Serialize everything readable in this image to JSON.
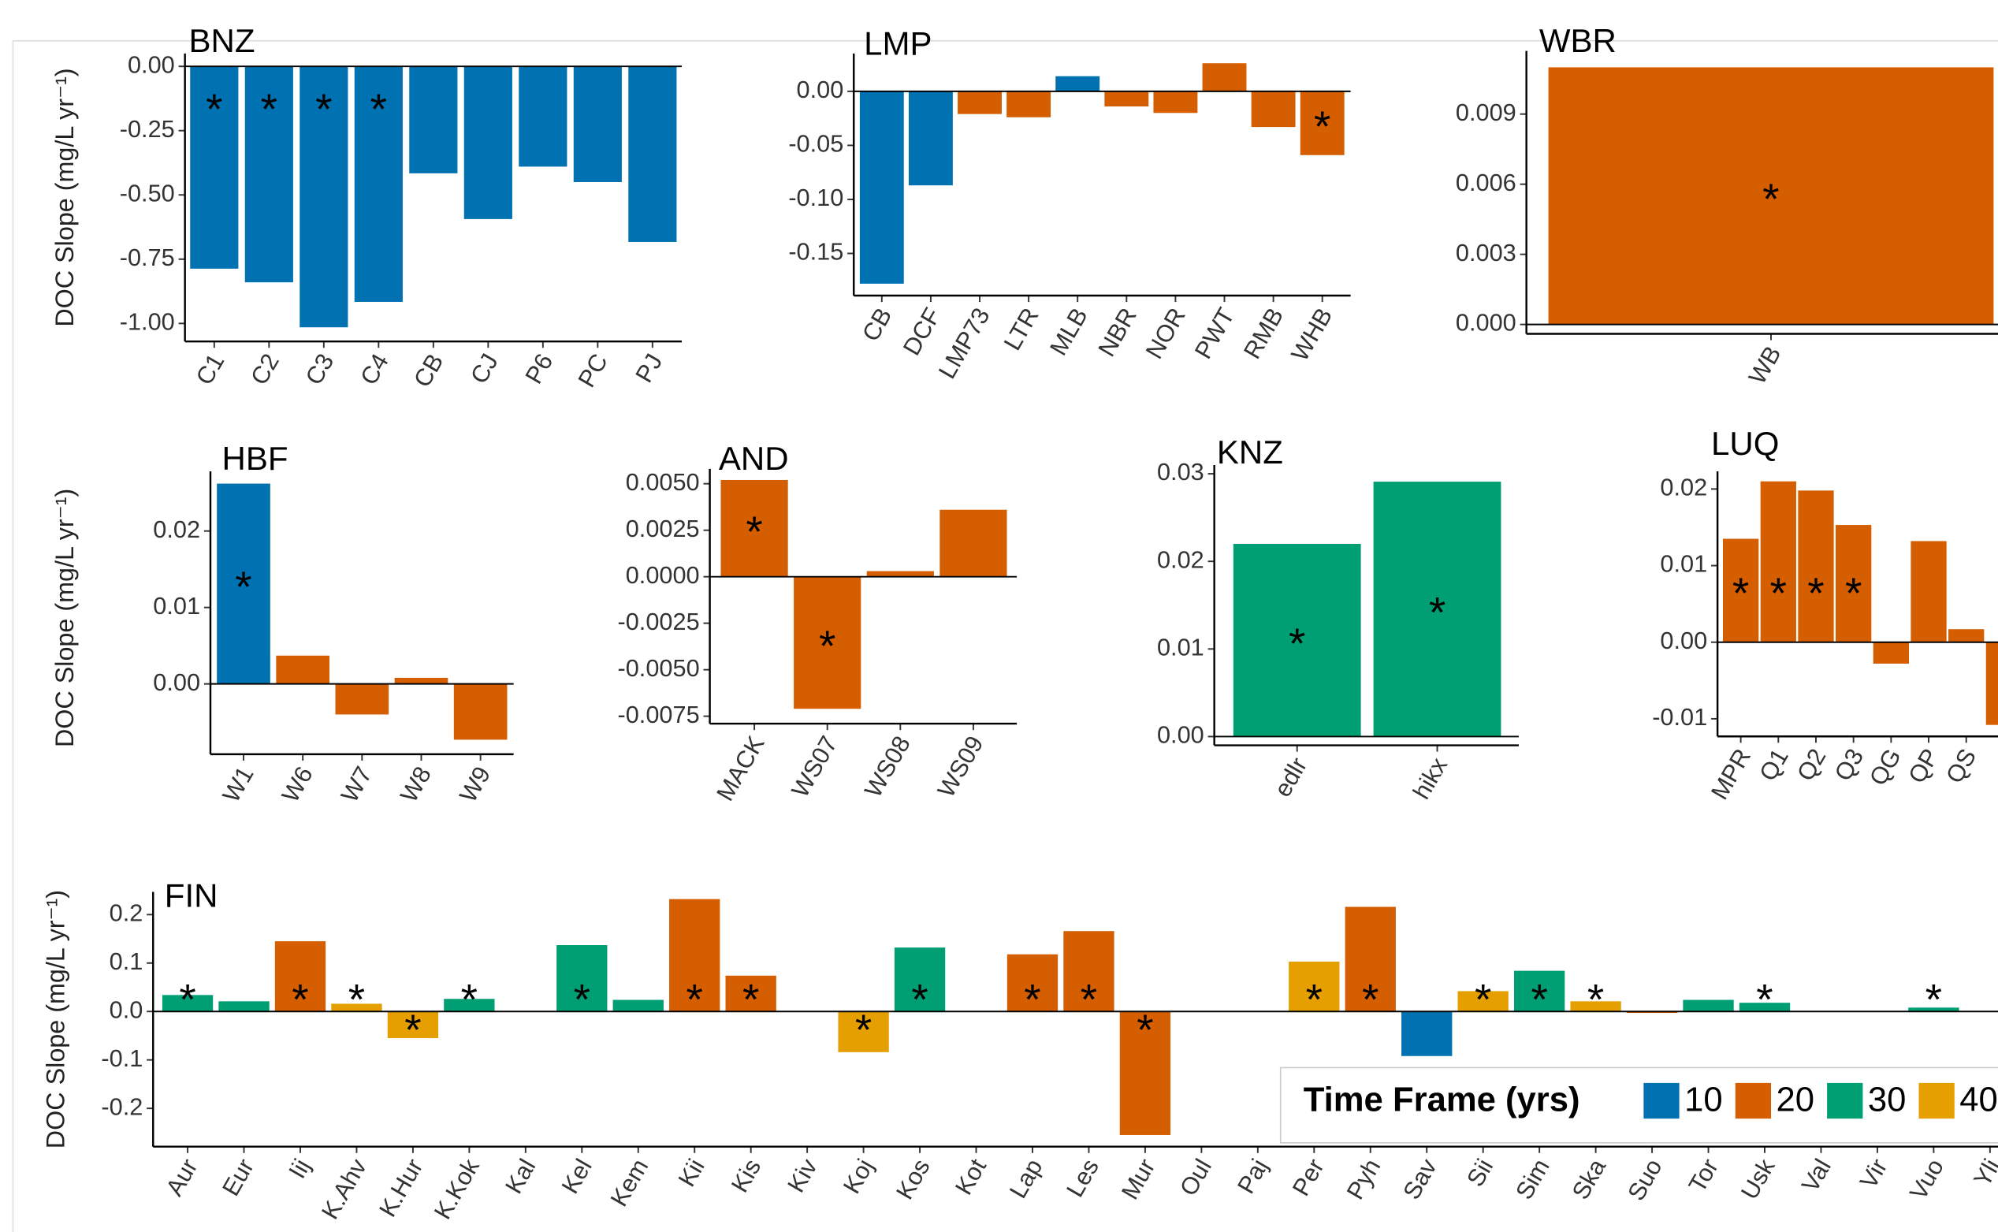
{
  "chart_data": [
    {
      "type": "bar",
      "title": "BNZ",
      "ylabel": "DOC Slope (mg/L yr⁻¹)",
      "marker": "*",
      "categories": [
        "C1",
        "C2",
        "C3",
        "C4",
        "CB",
        "CJ",
        "P6",
        "PC",
        "PJ"
      ],
      "values": [
        -0.787,
        -0.84,
        -1.015,
        -0.916,
        -0.416,
        -0.594,
        -0.39,
        -0.45,
        -0.683
      ],
      "colors": [
        "#0072b2",
        "#0072b2",
        "#0072b2",
        "#0072b2",
        "#0072b2",
        "#0072b2",
        "#0072b2",
        "#0072b2",
        "#0072b2"
      ],
      "significant": [
        true,
        true,
        true,
        true,
        false,
        false,
        false,
        false,
        false
      ],
      "ylim": [
        -1.07,
        0.05
      ],
      "yticks": [
        {
          "value": 0,
          "label": "0.00"
        },
        -0.25,
        {
          "value": -0.5,
          "label": "-0.50"
        },
        -0.75,
        {
          "value": -1,
          "label": "-1.00"
        }
      ]
    },
    {
      "type": "bar",
      "title": "LMP",
      "marker": "*",
      "categories": [
        "CB",
        "DCF",
        "LMP73",
        "LTR",
        "MLB",
        "NBR",
        "NOR",
        "PWT",
        "RMB",
        "WHB"
      ],
      "values": [
        -0.178,
        -0.087,
        -0.021,
        -0.024,
        0.014,
        -0.014,
        -0.02,
        0.026,
        -0.033,
        -0.059
      ],
      "colors": [
        "#0072b2",
        "#0072b2",
        "#d55e00",
        "#d55e00",
        "#0072b2",
        "#d55e00",
        "#d55e00",
        "#d55e00",
        "#d55e00",
        "#d55e00"
      ],
      "significant": [
        false,
        false,
        false,
        false,
        false,
        false,
        false,
        false,
        false,
        true
      ],
      "ylim": [
        -0.189,
        0.035
      ],
      "yticks": [
        {
          "value": 0,
          "label": "0.00"
        },
        -0.05,
        {
          "value": -0.1,
          "label": "-0.10"
        },
        -0.15
      ]
    },
    {
      "type": "bar",
      "title": "WBR",
      "marker": "*",
      "categories": [
        "WB"
      ],
      "values": [
        0.011
      ],
      "colors": [
        "#d55e00"
      ],
      "significant": [
        true
      ],
      "ylim": [
        -0.0004,
        0.0117
      ],
      "yticks": [
        {
          "value": 0,
          "label": "0.000"
        },
        0.003,
        0.006,
        0.009
      ]
    },
    {
      "type": "bar",
      "title": "HBF",
      "ylabel": "DOC Slope (mg/L yr⁻¹)",
      "marker": "*",
      "categories": [
        "W1",
        "W6",
        "W7",
        "W8",
        "W9"
      ],
      "values": [
        0.0262,
        0.0037,
        -0.004,
        0.0008,
        -0.0073
      ],
      "colors": [
        "#0072b2",
        "#d55e00",
        "#d55e00",
        "#d55e00",
        "#d55e00"
      ],
      "significant": [
        true,
        false,
        false,
        false,
        false
      ],
      "ylim": [
        -0.0092,
        0.0278
      ],
      "yticks": [
        {
          "value": 0,
          "label": "0.00"
        },
        0.01,
        0.02
      ]
    },
    {
      "type": "bar",
      "title": "AND",
      "marker": "*",
      "categories": [
        "MACK",
        "WS07",
        "WS08",
        "WS09"
      ],
      "values": [
        0.0052,
        -0.0071,
        0.0003,
        0.0036
      ],
      "colors": [
        "#d55e00",
        "#d55e00",
        "#d55e00",
        "#d55e00"
      ],
      "significant": [
        true,
        true,
        false,
        false
      ],
      "ylim": [
        -0.0079,
        0.0058
      ],
      "yticks": [
        {
          "value": 0.005,
          "label": "0.0050"
        },
        0.0025,
        {
          "value": 0,
          "label": "0.0000"
        },
        -0.0025,
        {
          "value": -0.005,
          "label": "-0.0050"
        },
        -0.0075
      ]
    },
    {
      "type": "bar",
      "title": "KNZ",
      "marker": "*",
      "categories": [
        "edlr",
        "hikx"
      ],
      "values": [
        0.022,
        0.0291
      ],
      "colors": [
        "#009e73",
        "#009e73"
      ],
      "significant": [
        true,
        true
      ],
      "ylim": [
        -0.001,
        0.031
      ],
      "yticks": [
        {
          "value": 0,
          "label": "0.00"
        },
        0.01,
        0.02,
        0.03
      ]
    },
    {
      "type": "bar",
      "title": "LUQ",
      "marker": "*",
      "categories": [
        "MPR",
        "Q1",
        "Q2",
        "Q3",
        "QG",
        "QP",
        "QS",
        null
      ],
      "values": [
        0.0135,
        0.021,
        0.0198,
        0.0153,
        -0.0028,
        0.0132,
        0.0017,
        -0.0108
      ],
      "colors": [
        "#d55e00",
        "#d55e00",
        "#d55e00",
        "#d55e00",
        "#d55e00",
        "#d55e00",
        "#d55e00",
        "#d55e00"
      ],
      "significant": [
        true,
        true,
        true,
        true,
        false,
        false,
        false,
        false
      ],
      "ylim": [
        -0.0123,
        0.0223
      ],
      "yticks": [
        0.02,
        0.01,
        {
          "value": 0,
          "label": "0.00"
        },
        -0.01
      ]
    },
    {
      "type": "bar",
      "title": "FIN",
      "ylabel": "DOC Slope (mg/L yr⁻¹)",
      "marker": "*",
      "categories": [
        "Aur",
        "Eur",
        "Iij",
        "K.Ahv",
        "K.Hur",
        "K.Kok",
        "Kal",
        "Kel",
        "Kem",
        "Kii",
        "Kis",
        "Kiv",
        "Koj",
        "Kos",
        "Kot",
        "Lap",
        "Les",
        "Mur",
        "Oul",
        "Paj",
        "Per",
        "Pyh",
        "Sav",
        "Sii",
        "Sim",
        "Ska",
        "Suo",
        "Tor",
        "Usk",
        "Val",
        "Vir",
        "Vuo",
        "Yli"
      ],
      "values": [
        0.034,
        0.021,
        0.145,
        0.016,
        -0.055,
        0.026,
        null,
        0.137,
        0.024,
        0.232,
        0.074,
        null,
        -0.084,
        0.132,
        null,
        0.118,
        0.166,
        -0.255,
        null,
        null,
        0.103,
        0.216,
        -0.092,
        0.042,
        0.084,
        0.021,
        -0.003,
        0.024,
        0.018,
        null,
        null,
        0.008,
        null
      ],
      "colors": [
        "#009e73",
        "#009e73",
        "#d55e00",
        "#e69f00",
        "#e69f00",
        "#009e73",
        null,
        "#009e73",
        "#009e73",
        "#d55e00",
        "#d55e00",
        null,
        "#e69f00",
        "#009e73",
        null,
        "#d55e00",
        "#d55e00",
        "#d55e00",
        null,
        null,
        "#e69f00",
        "#d55e00",
        "#0072b2",
        "#e69f00",
        "#009e73",
        "#e69f00",
        "#d55e00",
        "#009e73",
        "#009e73",
        null,
        null,
        "#009e73",
        null
      ],
      "significant": [
        true,
        false,
        true,
        true,
        true,
        true,
        false,
        true,
        false,
        true,
        true,
        false,
        true,
        true,
        false,
        true,
        true,
        true,
        false,
        false,
        true,
        true,
        false,
        true,
        true,
        true,
        false,
        false,
        true,
        false,
        false,
        true,
        false
      ],
      "ylim": [
        -0.279,
        0.247
      ],
      "yticks": [
        0.2,
        0.1,
        {
          "value": 0,
          "label": "0.0"
        },
        -0.1,
        -0.2
      ]
    }
  ],
  "legend": {
    "title": "Time Frame (yrs)",
    "items": [
      {
        "label": "10",
        "color": "#0072b2"
      },
      {
        "label": "20",
        "color": "#d55e00"
      },
      {
        "label": "30",
        "color": "#009e73"
      },
      {
        "label": "40",
        "color": "#e69f00"
      }
    ]
  }
}
